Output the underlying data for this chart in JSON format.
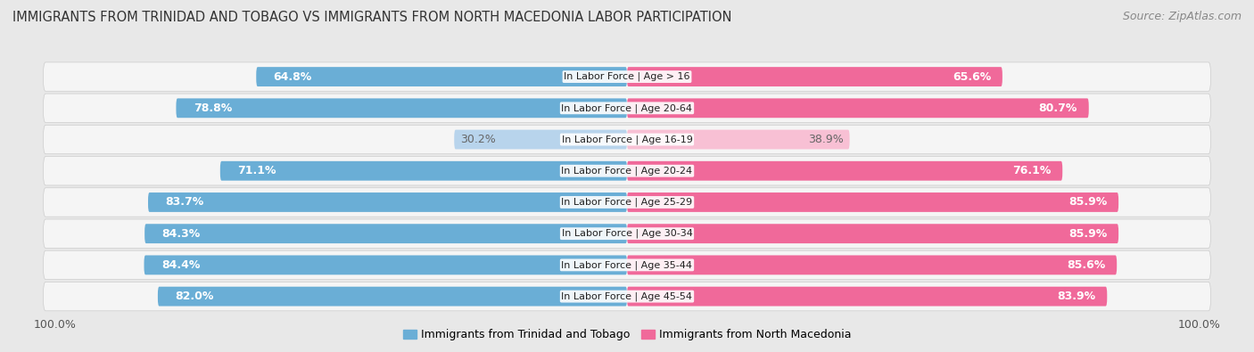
{
  "title": "IMMIGRANTS FROM TRINIDAD AND TOBAGO VS IMMIGRANTS FROM NORTH MACEDONIA LABOR PARTICIPATION",
  "source": "Source: ZipAtlas.com",
  "categories": [
    "In Labor Force | Age > 16",
    "In Labor Force | Age 20-64",
    "In Labor Force | Age 16-19",
    "In Labor Force | Age 20-24",
    "In Labor Force | Age 25-29",
    "In Labor Force | Age 30-34",
    "In Labor Force | Age 35-44",
    "In Labor Force | Age 45-54"
  ],
  "left_values": [
    64.8,
    78.8,
    30.2,
    71.1,
    83.7,
    84.3,
    84.4,
    82.0
  ],
  "right_values": [
    65.6,
    80.7,
    38.9,
    76.1,
    85.9,
    85.9,
    85.6,
    83.9
  ],
  "left_color": "#6aaed6",
  "right_color": "#f0699a",
  "left_color_light": "#b8d4ec",
  "right_color_light": "#f8c0d4",
  "background_color": "#e8e8e8",
  "row_bg": "#f5f5f5",
  "left_label": "Immigrants from Trinidad and Tobago",
  "right_label": "Immigrants from North Macedonia",
  "max_value": 100.0,
  "title_fontsize": 10.5,
  "source_fontsize": 9,
  "bar_label_fontsize": 9,
  "category_fontsize": 8,
  "legend_fontsize": 9
}
